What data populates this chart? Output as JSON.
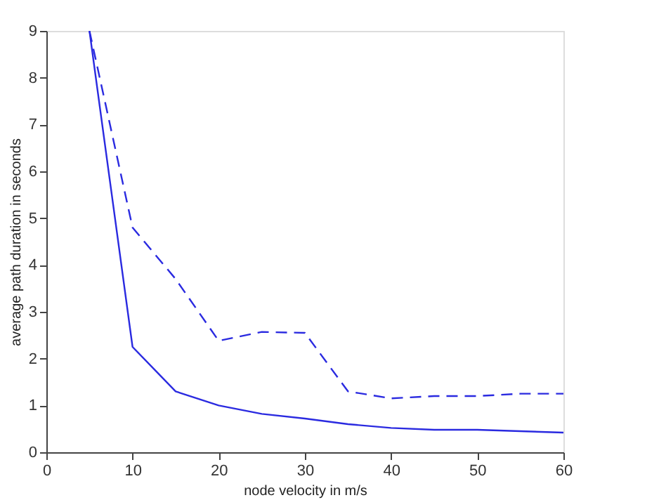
{
  "chart_data": {
    "type": "line",
    "xlabel": "node velocity in m/s",
    "ylabel": "average path duration in seconds",
    "x": [
      5,
      10,
      15,
      20,
      25,
      30,
      35,
      40,
      45,
      50,
      55,
      60
    ],
    "series": [
      {
        "color": "#2a2ae0",
        "line_style": "solid",
        "values": [
          9,
          2.25,
          1.3,
          1.0,
          0.82,
          0.72,
          0.6,
          0.52,
          0.48,
          0.48,
          0.45,
          0.42
        ]
      },
      {
        "color": "#2a2ae0",
        "line_style": "dashed",
        "values": [
          9,
          4.8,
          3.7,
          2.38,
          2.57,
          2.55,
          1.3,
          1.15,
          1.2,
          1.2,
          1.25,
          1.25
        ]
      }
    ],
    "xlim": [
      0,
      60
    ],
    "xticks": [
      0,
      10,
      20,
      30,
      40,
      50,
      60
    ],
    "ylim": [
      0,
      9
    ],
    "yticks": [
      0,
      1,
      2,
      3,
      4,
      5,
      6,
      7,
      8,
      9
    ],
    "grid": false,
    "marker": "none"
  }
}
